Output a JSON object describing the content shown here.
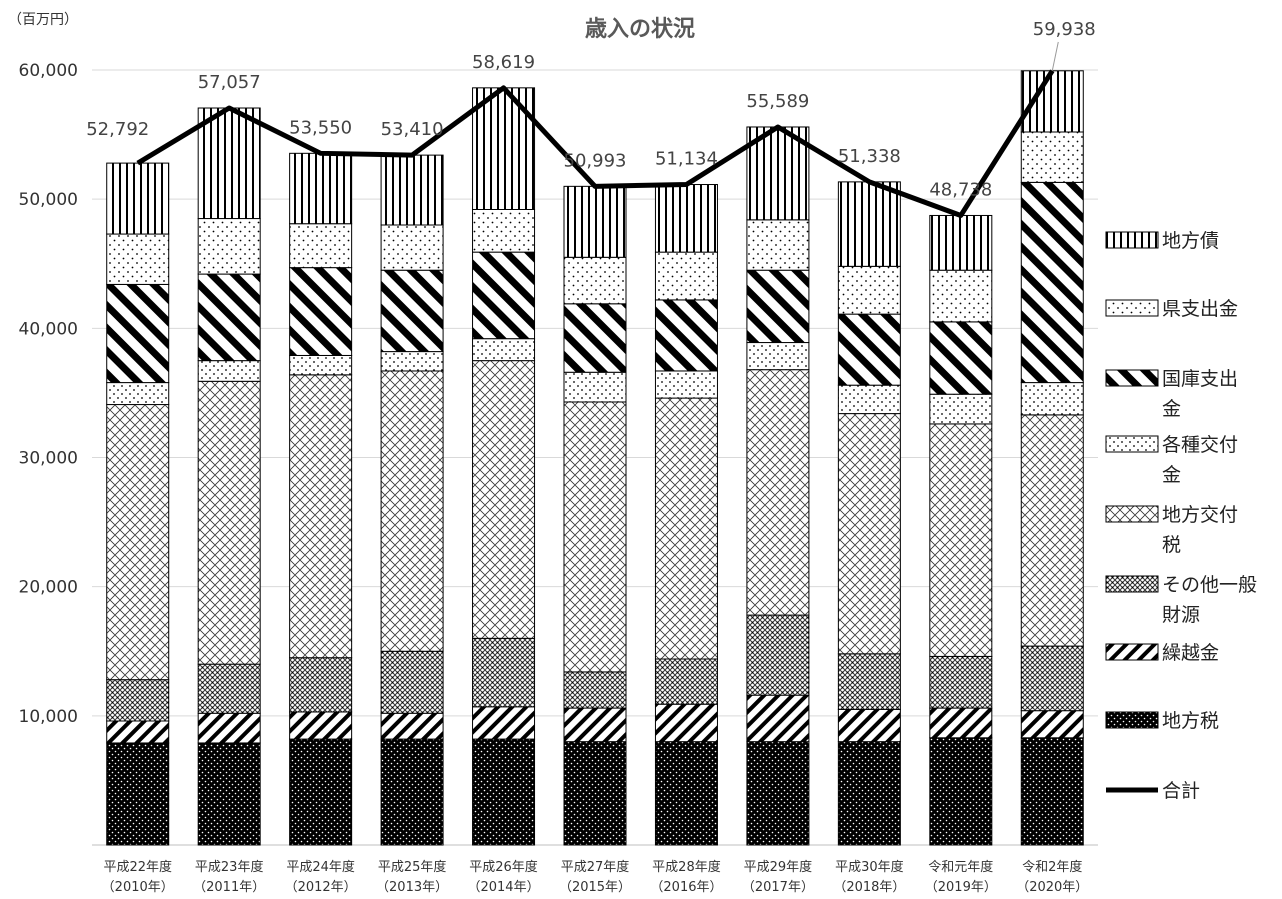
{
  "chart_data": {
    "type": "bar",
    "stacked": true,
    "title": "歳入の状況",
    "unit_label": "（百万円）",
    "ylim": [
      0,
      60000
    ],
    "yticks": [
      "10,000",
      "20,000",
      "30,000",
      "40,000",
      "50,000",
      "60,000"
    ],
    "ytick_values": [
      10000,
      20000,
      30000,
      40000,
      50000,
      60000
    ],
    "grid": true,
    "legend_position": "right",
    "categories": [
      [
        "平成22年度",
        "（2010年）"
      ],
      [
        "平成23年度",
        "（2011年）"
      ],
      [
        "平成24年度",
        "（2012年）"
      ],
      [
        "平成25年度",
        "（2013年）"
      ],
      [
        "平成26年度",
        "（2014年）"
      ],
      [
        "平成27年度",
        "（2015年）"
      ],
      [
        "平成28年度",
        "（2016年）"
      ],
      [
        "平成29年度",
        "（2017年）"
      ],
      [
        "平成30年度",
        "（2018年）"
      ],
      [
        "令和元年度",
        "（2019年）"
      ],
      [
        "令和2年度",
        "（2020年）"
      ]
    ],
    "series": [
      {
        "name": "地方税",
        "pattern": "dots-black",
        "values": [
          7900,
          7900,
          8200,
          8200,
          8200,
          8000,
          8000,
          8000,
          8000,
          8300,
          8300
        ]
      },
      {
        "name": "繰越金",
        "pattern": "diag-thin",
        "values": [
          1700,
          2300,
          2100,
          2000,
          2500,
          2600,
          2900,
          3600,
          2500,
          2300,
          2100
        ]
      },
      {
        "name": "その他一般財源",
        "pattern": "dense-dots",
        "values": [
          3200,
          3800,
          4200,
          4800,
          5300,
          2800,
          3500,
          6200,
          4300,
          4000,
          5000
        ]
      },
      {
        "name": "地方交付税",
        "pattern": "crosshatch",
        "values": [
          21300,
          21900,
          21900,
          21700,
          21500,
          20900,
          20200,
          19000,
          18600,
          18000,
          17900
        ]
      },
      {
        "name": "各種交付金",
        "pattern": "dots-sparse",
        "values": [
          1700,
          1600,
          1500,
          1500,
          1700,
          2300,
          2100,
          2100,
          2200,
          2300,
          2500
        ]
      },
      {
        "name": "国庫支出金",
        "pattern": "diag-bold",
        "values": [
          7600,
          6700,
          6800,
          6300,
          6700,
          5300,
          5500,
          5600,
          5500,
          5600,
          15500
        ]
      },
      {
        "name": "県支出金",
        "pattern": "dots-medium",
        "values": [
          3900,
          4300,
          3400,
          3500,
          3300,
          3600,
          3700,
          3900,
          3700,
          4000,
          3900
        ]
      },
      {
        "name": "地方債",
        "pattern": "vertical-lines",
        "values": [
          5492,
          8557,
          5450,
          5410,
          9419,
          5493,
          5234,
          7189,
          6538,
          4238,
          4738
        ]
      }
    ],
    "total_series": {
      "name": "合計",
      "values": [
        52792,
        57057,
        53550,
        53410,
        58619,
        50993,
        51134,
        55589,
        51338,
        48738,
        59938
      ],
      "labels": [
        "52,792",
        "57,057",
        "53,550",
        "53,410",
        "58,619",
        "50,993",
        "51,134",
        "55,589",
        "51,338",
        "48,738",
        "59,938"
      ]
    },
    "legend": [
      {
        "text": [
          "地方税"
        ],
        "pattern": "dots-black"
      },
      {
        "text": [
          "繰越金"
        ],
        "pattern": "diag-thin"
      },
      {
        "text": [
          "その他一般",
          "財源"
        ],
        "pattern": "dense-dots"
      },
      {
        "text": [
          "地方交付",
          "税"
        ],
        "pattern": "crosshatch"
      },
      {
        "text": [
          "各種交付",
          "金"
        ],
        "pattern": "dots-sparse"
      },
      {
        "text": [
          "国庫支出",
          "金"
        ],
        "pattern": "diag-bold"
      },
      {
        "text": [
          "県支出金"
        ],
        "pattern": "dots-medium"
      },
      {
        "text": [
          "地方債"
        ],
        "pattern": "vertical-lines"
      },
      {
        "text": [
          "合計"
        ],
        "pattern": "line"
      }
    ]
  }
}
